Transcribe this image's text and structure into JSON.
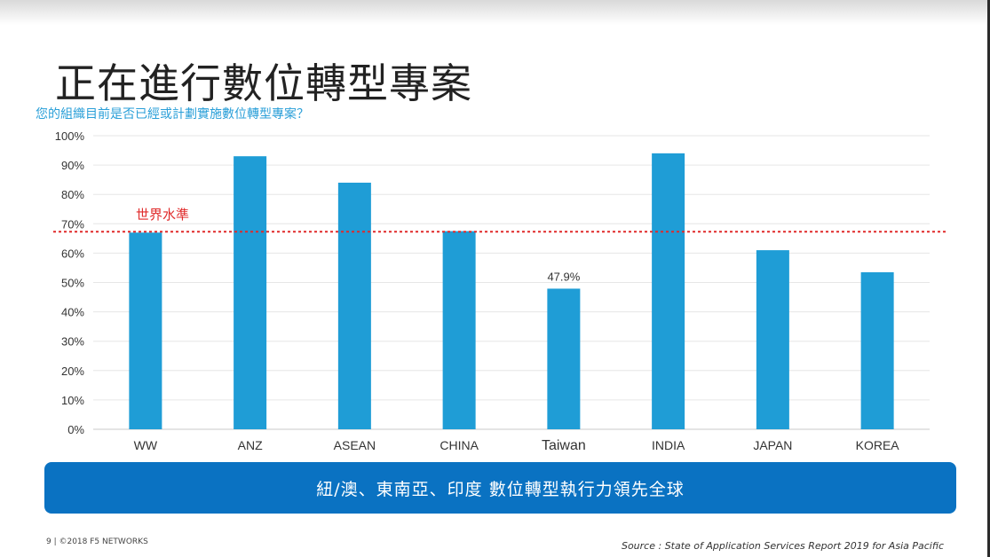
{
  "slide": {
    "title": "正在進行數位轉型專案",
    "subtitle": "您的組織目前是否已經或計劃實施數位轉型專案？",
    "banner": "紐/澳、東南亞、印度 數位轉型執行力領先全球",
    "footer_left": "9 | ©2018 F5 NETWORKS",
    "footer_right": "Source : State of Application Services Report 2019 for Asia Pacific"
  },
  "chart_data": {
    "type": "bar",
    "categories": [
      "WW",
      "ANZ",
      "ASEAN",
      "CHINA",
      "Taiwan",
      "INDIA",
      "JAPAN",
      "KOREA"
    ],
    "values": [
      67,
      93,
      84,
      67.5,
      47.9,
      94,
      61,
      53.5
    ],
    "data_labels": [
      {
        "category": "Taiwan",
        "text": "47.9%"
      }
    ],
    "ylim": [
      0,
      100
    ],
    "yticks": [
      "0%",
      "10%",
      "20%",
      "30%",
      "40%",
      "50%",
      "60%",
      "70%",
      "80%",
      "90%",
      "100%"
    ],
    "xlabel": "",
    "ylabel": "",
    "grid": true,
    "bar_color": "#1f9dd6",
    "reference_line": {
      "value": 67,
      "label": "世界水準",
      "color": "#e02a2a"
    }
  }
}
